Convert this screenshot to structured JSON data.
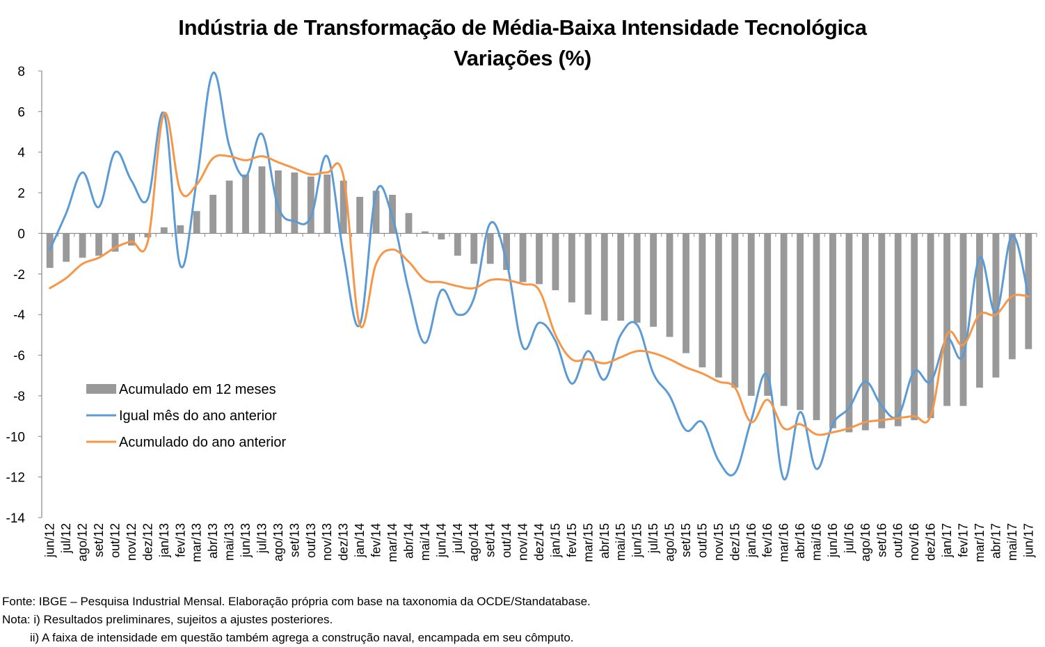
{
  "chart_data": {
    "type": "bar+line",
    "title": "Indústria de Transformação de Média-Baixa Intensidade Tecnológica",
    "subtitle": "Variações (%)",
    "xlabel": "",
    "ylabel": "",
    "ylim": [
      -14,
      8
    ],
    "yticks": [
      8,
      6,
      4,
      2,
      0,
      -2,
      -4,
      -6,
      -8,
      -10,
      -12,
      -14
    ],
    "legend_position": "lower-left",
    "categories": [
      "jun/12",
      "jul/12",
      "ago/12",
      "set/12",
      "out/12",
      "nov/12",
      "dez/12",
      "jan/13",
      "fev/13",
      "mar/13",
      "abr/13",
      "mai/13",
      "jun/13",
      "jul/13",
      "ago/13",
      "set/13",
      "out/13",
      "nov/13",
      "dez/13",
      "jan/14",
      "fev/14",
      "mar/14",
      "abr/14",
      "mai/14",
      "jun/14",
      "jul/14",
      "ago/14",
      "set/14",
      "out/14",
      "nov/14",
      "dez/14",
      "jan/15",
      "fev/15",
      "mar/15",
      "abr/15",
      "mai/15",
      "jun/15",
      "jul/15",
      "ago/15",
      "set/15",
      "out/15",
      "nov/15",
      "dez/15",
      "jan/16",
      "fev/16",
      "mar/16",
      "abr/16",
      "mai/16",
      "jun/16",
      "jul/16",
      "ago/16",
      "set/16",
      "out/16",
      "nov/16",
      "dez/16",
      "jan/17",
      "fev/17",
      "mar/17",
      "abr/17",
      "mai/17",
      "jun/17"
    ],
    "series": [
      {
        "name": "Acumulado em 12 meses",
        "kind": "bar",
        "color": "#999999",
        "values": [
          -1.7,
          -1.4,
          -1.2,
          -1.1,
          -0.9,
          -0.6,
          -0.2,
          0.3,
          0.4,
          1.1,
          1.9,
          2.6,
          2.9,
          3.3,
          3.1,
          3.0,
          2.8,
          2.9,
          2.6,
          1.8,
          2.1,
          1.9,
          1.0,
          0.1,
          -0.3,
          -1.1,
          -1.5,
          -1.5,
          -1.8,
          -2.4,
          -2.5,
          -2.8,
          -3.4,
          -4.0,
          -4.3,
          -4.3,
          -4.4,
          -4.6,
          -5.1,
          -5.9,
          -6.6,
          -7.1,
          -7.6,
          -8.0,
          -8.0,
          -8.5,
          -8.7,
          -9.2,
          -9.6,
          -9.8,
          -9.7,
          -9.6,
          -9.5,
          -9.2,
          -9.1,
          -8.5,
          -8.5,
          -7.6,
          -7.1,
          -6.2,
          -5.7
        ]
      },
      {
        "name": "Igual mês do ano anterior",
        "kind": "line",
        "color": "#5B9BD5",
        "values": [
          -0.8,
          1.0,
          3.0,
          1.3,
          4.0,
          2.6,
          1.7,
          5.9,
          -1.6,
          2.6,
          7.9,
          4.3,
          2.8,
          4.9,
          1.3,
          0.6,
          0.8,
          3.8,
          -1.0,
          -4.5,
          2.0,
          0.8,
          -2.8,
          -5.4,
          -2.8,
          -4.0,
          -3.2,
          0.5,
          -1.4,
          -5.6,
          -4.4,
          -5.3,
          -7.4,
          -5.8,
          -7.2,
          -5.0,
          -4.5,
          -6.9,
          -8.0,
          -9.7,
          -9.3,
          -11.2,
          -11.8,
          -9.2,
          -7.0,
          -12.1,
          -8.8,
          -11.6,
          -9.4,
          -8.6,
          -7.3,
          -8.5,
          -9.0,
          -6.8,
          -7.3,
          -5.2,
          -6.0,
          -1.2,
          -3.9,
          -0.1,
          -3.1
        ]
      },
      {
        "name": "Acumulado do ano anterior",
        "kind": "line",
        "color": "#F79646",
        "values": [
          -2.7,
          -2.2,
          -1.5,
          -1.2,
          -0.7,
          -0.4,
          -0.4,
          5.9,
          2.1,
          2.4,
          3.7,
          3.8,
          3.6,
          3.8,
          3.5,
          3.2,
          2.9,
          3.0,
          2.8,
          -4.5,
          -1.5,
          -0.8,
          -1.4,
          -2.3,
          -2.4,
          -2.6,
          -2.7,
          -2.3,
          -2.3,
          -2.5,
          -2.8,
          -5.0,
          -6.2,
          -6.2,
          -6.4,
          -6.1,
          -5.8,
          -5.9,
          -6.2,
          -6.6,
          -6.9,
          -7.3,
          -7.6,
          -9.3,
          -8.2,
          -9.6,
          -9.4,
          -9.9,
          -9.8,
          -9.6,
          -9.3,
          -9.2,
          -9.1,
          -9.0,
          -9.0,
          -5.0,
          -5.5,
          -4.0,
          -4.0,
          -3.1,
          -3.1
        ]
      }
    ]
  },
  "footer": {
    "source": "Fonte: IBGE – Pesquisa Industrial Mensal. Elaboração própria com base na taxonomia da OCDE/Standatabase.",
    "note1": "Nota: i) Resultados preliminares, sujeitos a ajustes posteriores.",
    "note2": "ii) A faixa de intensidade em questão também agrega a construção naval, encampada em seu cômputo."
  }
}
